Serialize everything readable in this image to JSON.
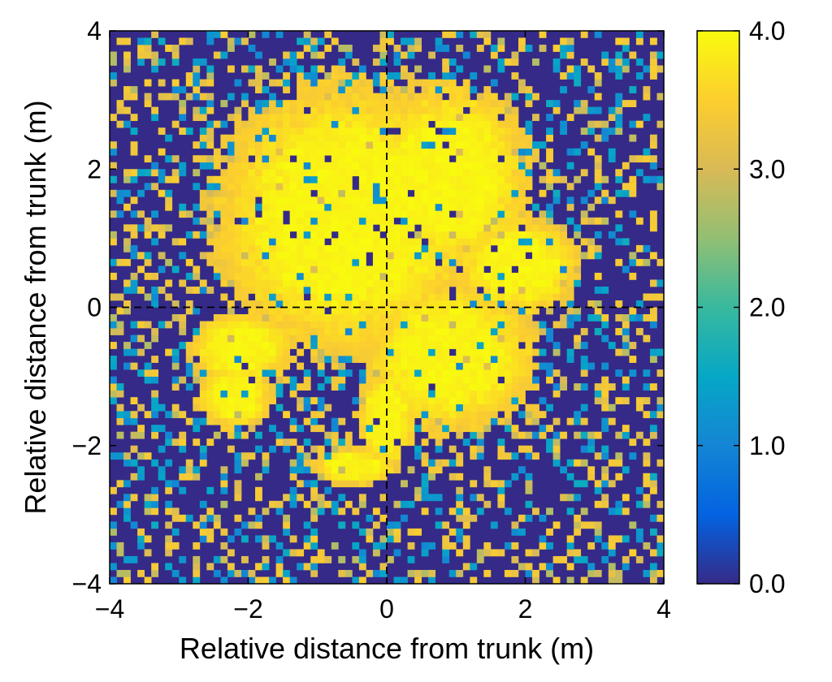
{
  "chart_data": {
    "type": "heatmap",
    "title": "",
    "xlabel": "Relative distance from trunk (m)",
    "ylabel": "Relative distance from trunk (m)",
    "xlim": [
      -4,
      4
    ],
    "ylim": [
      -4,
      4
    ],
    "x_ticks": [
      -4,
      -2,
      0,
      2,
      4
    ],
    "y_ticks": [
      -4,
      -2,
      0,
      2,
      4
    ],
    "x_tick_labels": [
      "−4",
      "−2",
      "0",
      "2",
      "4"
    ],
    "y_tick_labels": [
      "−4",
      "−2",
      "0",
      "2",
      "4"
    ],
    "grid": false,
    "reference_lines": [
      {
        "orientation": "vertical",
        "value": 0,
        "style": "dashed"
      },
      {
        "orientation": "horizontal",
        "value": 0,
        "style": "dashed"
      }
    ],
    "cell_size_m": 0.1,
    "background_value": 0.0,
    "crown_centers": [
      {
        "x": -0.6,
        "y": 1.3,
        "rx": 2.1,
        "ry": 2.2
      },
      {
        "x": 0.9,
        "y": 1.9,
        "rx": 1.3,
        "ry": 1.5
      },
      {
        "x": 0.9,
        "y": -0.7,
        "rx": 1.4,
        "ry": 1.2
      },
      {
        "x": 1.9,
        "y": 0.6,
        "rx": 1.0,
        "ry": 0.8
      },
      {
        "x": -2.1,
        "y": -0.6,
        "rx": 0.8,
        "ry": 0.6
      },
      {
        "x": -2.2,
        "y": -1.3,
        "rx": 0.6,
        "ry": 0.5
      },
      {
        "x": 0.0,
        "y": -1.6,
        "rx": 0.45,
        "ry": 0.8
      },
      {
        "x": -0.45,
        "y": -2.3,
        "rx": 0.65,
        "ry": 0.3
      }
    ],
    "peak_value": 4.0,
    "colorbar": {
      "min": 0.0,
      "max": 4.0,
      "ticks": [
        0.0,
        1.0,
        2.0,
        3.0,
        4.0
      ],
      "tick_labels": [
        "0.0",
        "1.0",
        "2.0",
        "3.0",
        "4.0"
      ],
      "colormap": [
        "#352a87",
        "#0363e1",
        "#1485d4",
        "#06a7c6",
        "#38b99e",
        "#92bf73",
        "#d9ba56",
        "#fcce2e",
        "#f9fb0e"
      ]
    },
    "colors": {
      "background": "#352a87",
      "frame": "#000000",
      "reference_line": "#000000"
    }
  }
}
